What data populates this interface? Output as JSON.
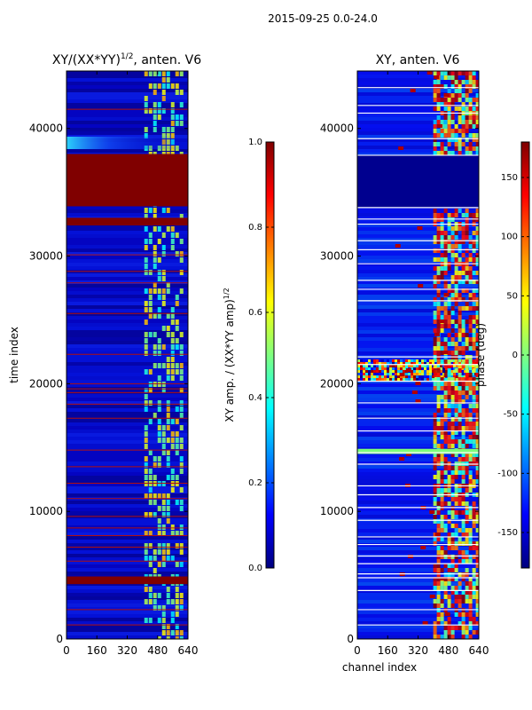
{
  "figure": {
    "suptitle": "2015-09-25 0.0-24.0",
    "xlabel": "channel index"
  },
  "chart_data": [
    {
      "type": "heatmap",
      "title_main": "XY/(XX*YY)",
      "title_sup": "1/2",
      "title_tail": ", anten. V6",
      "xlabel": "",
      "ylabel": "time index",
      "xlim": [
        0,
        640
      ],
      "ylim": [
        0,
        44500
      ],
      "xticks": [
        0,
        160,
        320,
        480,
        640
      ],
      "yticks": [
        0,
        10000,
        20000,
        30000,
        40000
      ],
      "colormap": "jet",
      "colorbar": {
        "label": "XY amp. / (XX*YY amp)",
        "label_sup": "1/2",
        "range": [
          0.0,
          1.0
        ],
        "ticks": [
          "0.0",
          "0.2",
          "0.4",
          "0.6",
          "0.8",
          "1.0"
        ]
      },
      "bands": [
        {
          "from": 33900,
          "to": 38000,
          "value": 1.0
        },
        {
          "from": 32400,
          "to": 33000,
          "value": 1.0
        },
        {
          "from": 4300,
          "to": 4900,
          "value": 1.0
        }
      ],
      "thin_lines": [
        41500,
        30100,
        28800,
        27900,
        25500,
        22300,
        20000,
        19600,
        19300,
        18400,
        17300,
        14800,
        13500,
        12200,
        11000,
        9600,
        8700,
        8100,
        7200,
        6100,
        2300,
        1100
      ],
      "active_channel_range": [
        410,
        600
      ]
    },
    {
      "type": "heatmap",
      "title": "XY, anten. V6",
      "xlabel": "",
      "ylabel": "",
      "xlim": [
        0,
        640
      ],
      "ylim": [
        0,
        44500
      ],
      "xticks": [
        0,
        160,
        320,
        480,
        640
      ],
      "yticks": [
        0,
        10000,
        20000,
        30000,
        40000
      ],
      "colormap": "jet",
      "colorbar": {
        "label": "phase (deg)",
        "range": [
          -180,
          180
        ],
        "ticks": [
          "-150",
          "-100",
          "-50",
          "0",
          "50",
          "100",
          "150"
        ]
      },
      "lines": [
        43200,
        41800,
        41200,
        39200,
        37900,
        33800,
        32900,
        32500,
        31200,
        30500,
        29400,
        28100,
        27400,
        26500,
        22100,
        21500,
        20200,
        18500,
        17300,
        16300,
        14600,
        13700,
        12000,
        11300,
        10300,
        9300,
        8000,
        7400,
        6500,
        5900,
        5100,
        4800,
        3800,
        2300,
        1100
      ],
      "band": {
        "from": 14500,
        "to": 14900,
        "value": -60
      },
      "active_channel_range": [
        400,
        640
      ]
    }
  ]
}
